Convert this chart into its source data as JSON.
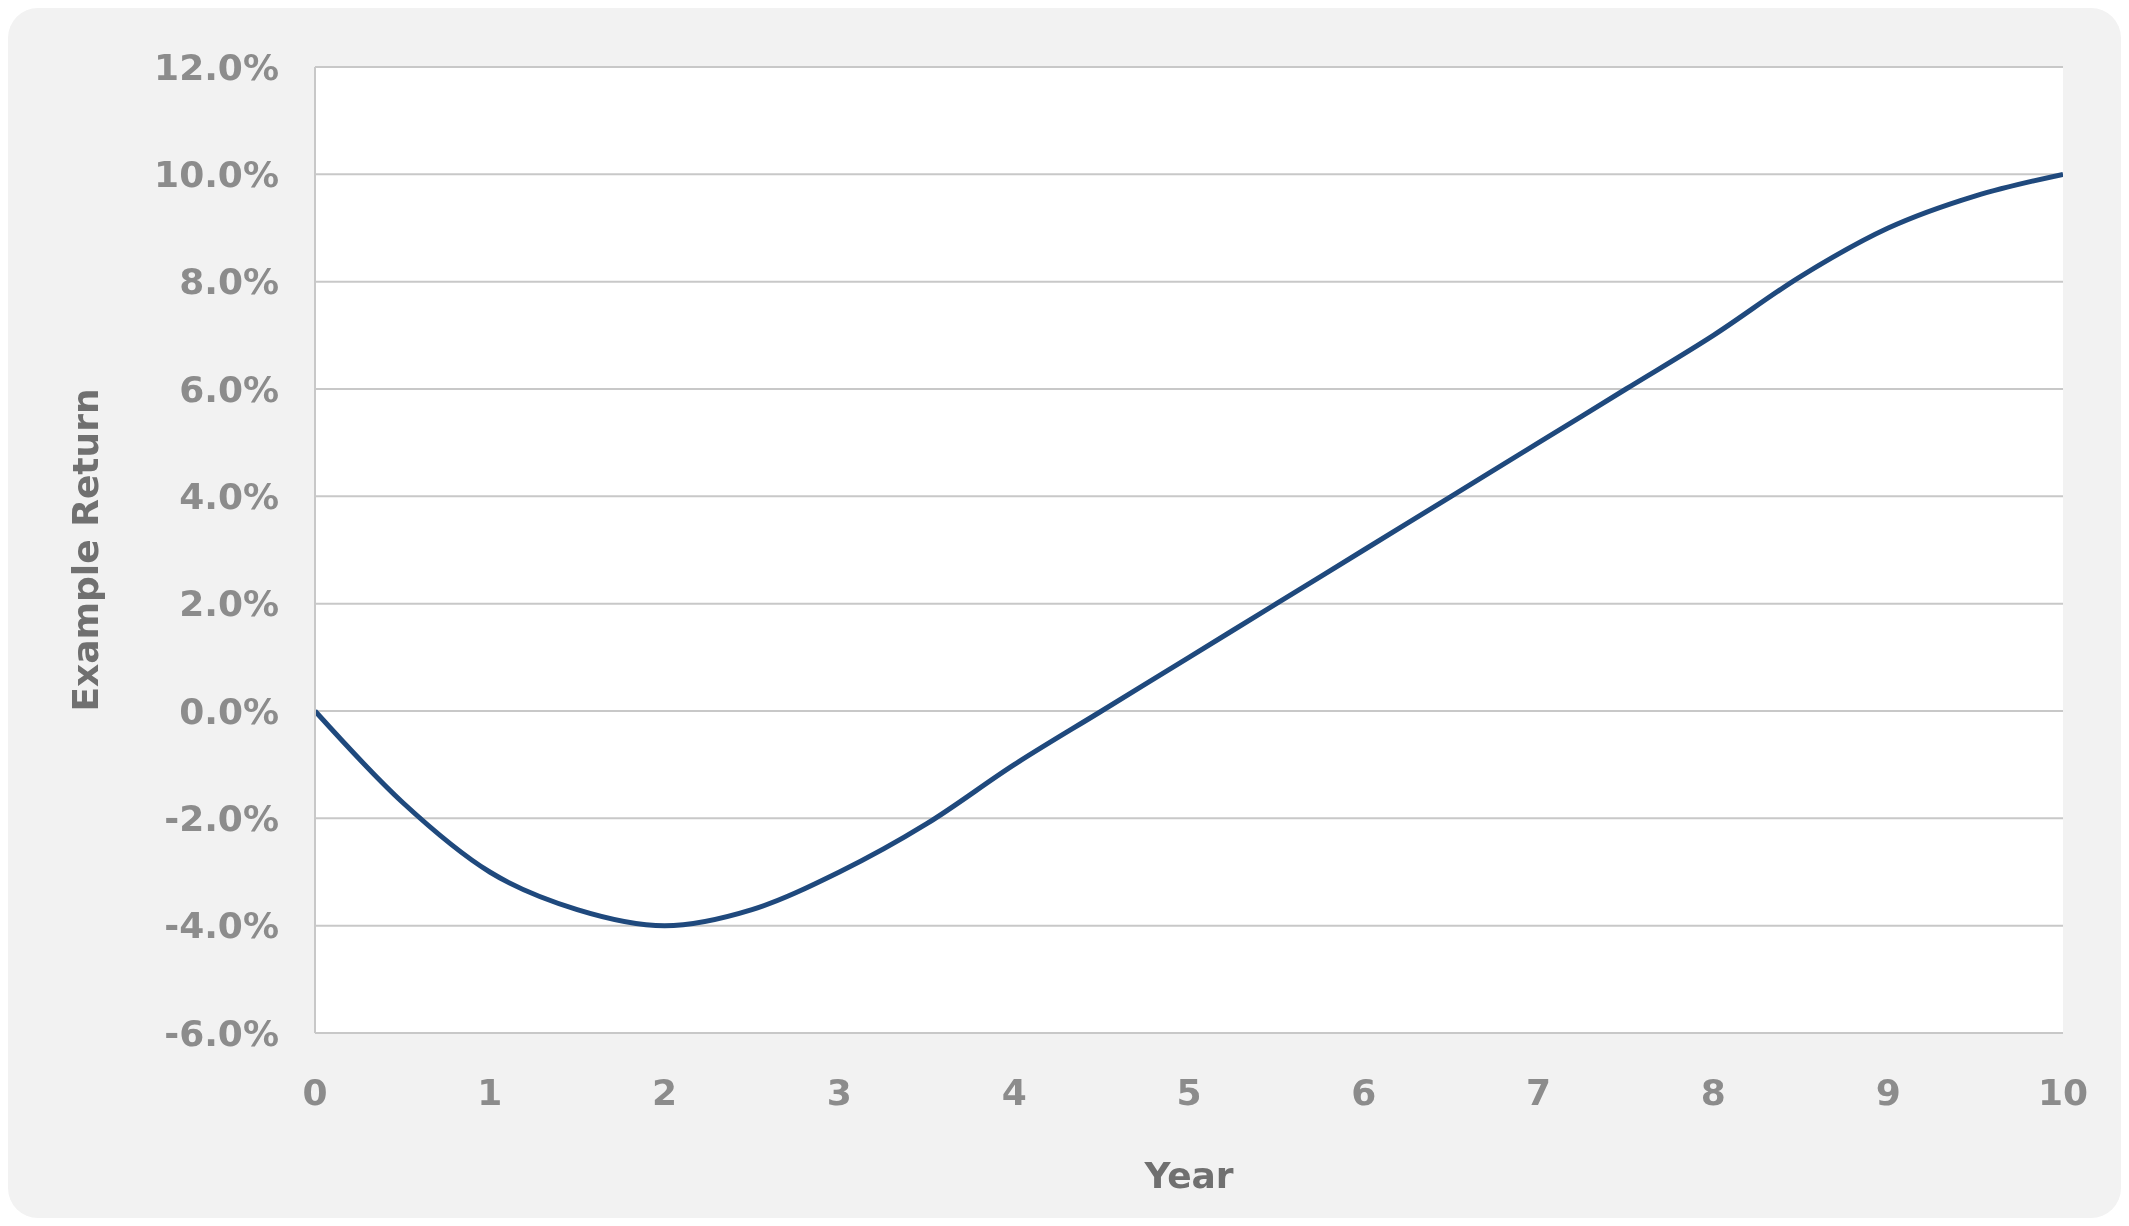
{
  "chart_data": {
    "type": "line",
    "xlabel": "Year",
    "ylabel": "Example Return",
    "x": [
      0,
      0.5,
      1,
      1.5,
      2,
      2.5,
      3,
      3.5,
      4,
      4.5,
      5,
      5.5,
      6,
      6.5,
      7,
      7.5,
      8,
      8.5,
      9,
      9.5,
      10
    ],
    "series": [
      {
        "color": "#1f497d",
        "values": [
          0,
          -1.7,
          -3.0,
          -3.7,
          -4.0,
          -3.7,
          -3.0,
          -2.1,
          -1.0,
          0,
          1.0,
          2.0,
          3.0,
          4.0,
          5.0,
          6.0,
          7.0,
          8.1,
          9.0,
          9.6,
          10.0
        ]
      }
    ],
    "xlim": [
      0,
      10
    ],
    "xticks": [
      0,
      1,
      2,
      3,
      4,
      5,
      6,
      7,
      8,
      9,
      10
    ],
    "ylim": [
      -6,
      12
    ],
    "yticks": [
      {
        "value": -6,
        "label": "-6.0%"
      },
      {
        "value": -4,
        "label": "-4.0%"
      },
      {
        "value": -2,
        "label": "-2.0%"
      },
      {
        "value": 0,
        "label": "0.0%"
      },
      {
        "value": 2,
        "label": "2.0%"
      },
      {
        "value": 4,
        "label": "4.0%"
      },
      {
        "value": 6,
        "label": "6.0%"
      },
      {
        "value": 8,
        "label": "8.0%"
      },
      {
        "value": 10,
        "label": "10.0%"
      },
      {
        "value": 12,
        "label": "12.0%"
      }
    ],
    "grid": "y",
    "marker": "none",
    "line_style": "solid",
    "legend": false
  }
}
